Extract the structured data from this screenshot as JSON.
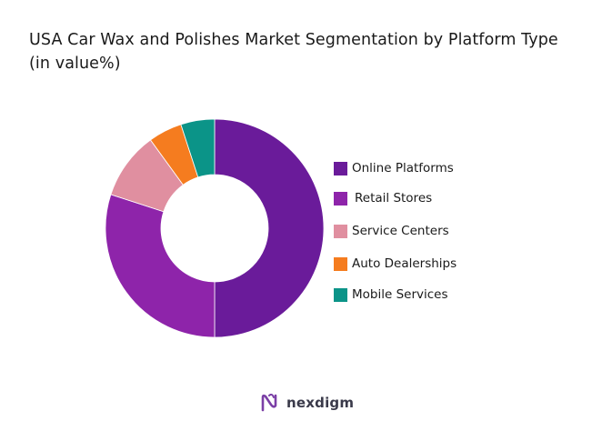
{
  "chart_data": {
    "type": "pie",
    "variant": "donut",
    "title": "USA Car Wax and Polishes Market Segmentation by Platform Type",
    "subtitle": "(in value%)",
    "categories": [
      "Online Platforms",
      "Retail Stores",
      "Service Centers",
      "Auto Dealerships",
      "Mobile Services"
    ],
    "values": [
      50,
      30,
      10,
      5,
      5
    ],
    "colors": [
      "#6a1b9a",
      "#8e24aa",
      "#e08fa0",
      "#f57c1f",
      "#0b9488"
    ],
    "legend_position": "right"
  },
  "footer": {
    "brand": "nexdigm",
    "logo_color": "#7b3fa6"
  }
}
